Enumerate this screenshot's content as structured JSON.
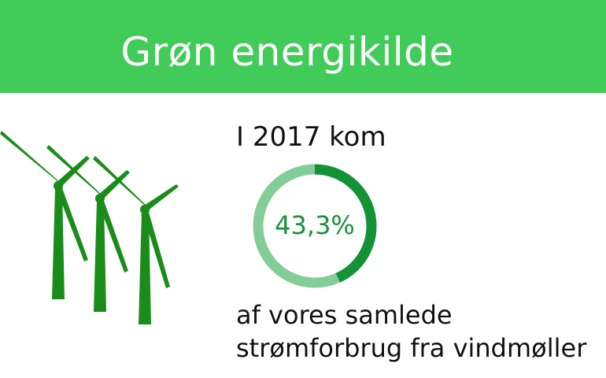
{
  "header": {
    "title": "Grøn energikilde"
  },
  "illustration": {
    "icon": "wind-turbines-icon",
    "count": 3
  },
  "stat": {
    "intro": "I 2017 kom",
    "value_label": "43,3%",
    "percent": 43.3,
    "line1": "af vores samlede",
    "line2": "strømforbrug fra vindmøller"
  },
  "colors": {
    "banner": "#41cc5a",
    "ring_fill": "#149336",
    "ring_track": "#82cd98",
    "value_text": "#17923a",
    "turbine": "#1a8c1a"
  }
}
